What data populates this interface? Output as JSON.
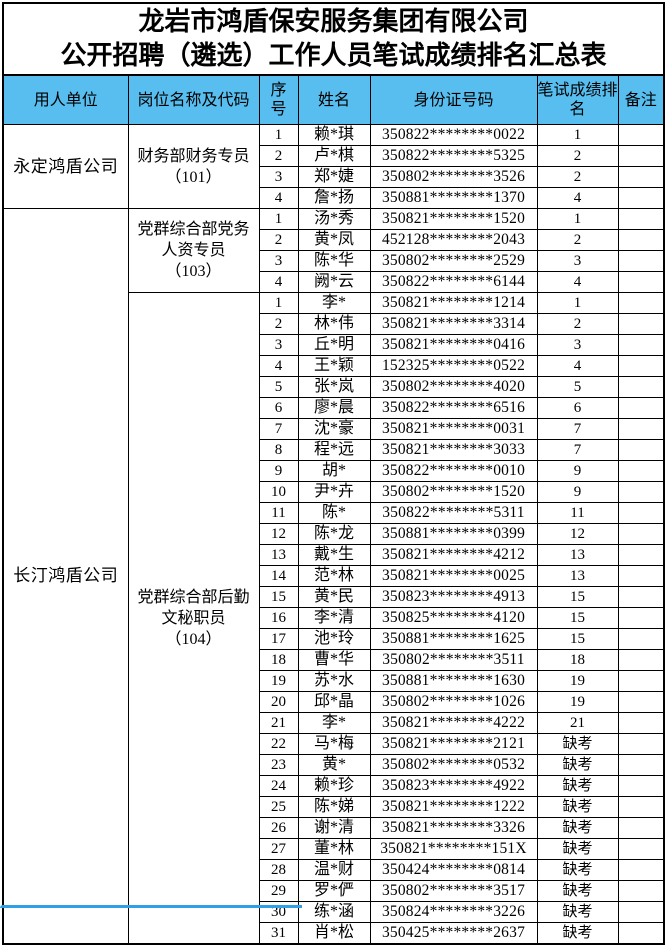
{
  "title": {
    "line1": "龙岩市鸿盾保安服务集团有限公司",
    "line2": "公开招聘（遴选）工作人员笔试成绩排名汇总表"
  },
  "header": {
    "employer": "用人单位",
    "position": "岗位名称及代码",
    "index": "序号",
    "name": "姓名",
    "id_number": "身份证号码",
    "rank": "笔试成绩排名",
    "remark": "备注"
  },
  "colors": {
    "header_bg": "#58BEEF",
    "border": "#000000",
    "bottom_strip": "#2F9FE8"
  },
  "groups": [
    {
      "employer": "永定鸿盾公司",
      "positions": [
        {
          "title_lines": [
            "财务部财务专员",
            "（101）"
          ],
          "rows": [
            {
              "no": "1",
              "name": "赖*琪",
              "id": "350822********0022",
              "rank": "1",
              "remark": ""
            },
            {
              "no": "2",
              "name": "卢*棋",
              "id": "350822********5325",
              "rank": "2",
              "remark": ""
            },
            {
              "no": "3",
              "name": "郑*婕",
              "id": "350802********3526",
              "rank": "2",
              "remark": ""
            },
            {
              "no": "4",
              "name": "詹*扬",
              "id": "350881********1370",
              "rank": "4",
              "remark": ""
            }
          ]
        }
      ]
    },
    {
      "employer": "长汀鸿盾公司",
      "positions": [
        {
          "title_lines": [
            "党群综合部党务",
            "人资专员",
            "（103）"
          ],
          "rows": [
            {
              "no": "1",
              "name": "汤*秀",
              "id": "350821********1520",
              "rank": "1",
              "remark": ""
            },
            {
              "no": "2",
              "name": "黄*凤",
              "id": "452128********2043",
              "rank": "2",
              "remark": ""
            },
            {
              "no": "3",
              "name": "陈*华",
              "id": "350802********2529",
              "rank": "3",
              "remark": ""
            },
            {
              "no": "4",
              "name": "阙*云",
              "id": "350822********6144",
              "rank": "4",
              "remark": ""
            }
          ]
        },
        {
          "title_lines": [
            "党群综合部后勤",
            "文秘职员",
            "（104）"
          ],
          "rows": [
            {
              "no": "1",
              "name": "李*",
              "id": "350821********1214",
              "rank": "1",
              "remark": ""
            },
            {
              "no": "2",
              "name": "林*伟",
              "id": "350821********3314",
              "rank": "2",
              "remark": ""
            },
            {
              "no": "3",
              "name": "丘*明",
              "id": "350821********0416",
              "rank": "3",
              "remark": ""
            },
            {
              "no": "4",
              "name": "王*颖",
              "id": "152325********0522",
              "rank": "4",
              "remark": ""
            },
            {
              "no": "5",
              "name": "张*岚",
              "id": "350802********4020",
              "rank": "5",
              "remark": ""
            },
            {
              "no": "6",
              "name": "廖*晨",
              "id": "350822********6516",
              "rank": "6",
              "remark": ""
            },
            {
              "no": "7",
              "name": "沈*豪",
              "id": "350821********0031",
              "rank": "7",
              "remark": ""
            },
            {
              "no": "8",
              "name": "程*远",
              "id": "350821********3033",
              "rank": "7",
              "remark": ""
            },
            {
              "no": "9",
              "name": "胡*",
              "id": "350822********0010",
              "rank": "9",
              "remark": ""
            },
            {
              "no": "10",
              "name": "尹*卉",
              "id": "350802********1520",
              "rank": "9",
              "remark": ""
            },
            {
              "no": "11",
              "name": "陈*",
              "id": "350822********5311",
              "rank": "11",
              "remark": ""
            },
            {
              "no": "12",
              "name": "陈*龙",
              "id": "350881********0399",
              "rank": "12",
              "remark": ""
            },
            {
              "no": "13",
              "name": "戴*生",
              "id": "350821********4212",
              "rank": "13",
              "remark": ""
            },
            {
              "no": "14",
              "name": "范*林",
              "id": "350821********0025",
              "rank": "13",
              "remark": ""
            },
            {
              "no": "15",
              "name": "黄*民",
              "id": "350823********4913",
              "rank": "15",
              "remark": ""
            },
            {
              "no": "16",
              "name": "李*清",
              "id": "350825********4120",
              "rank": "15",
              "remark": ""
            },
            {
              "no": "17",
              "name": "池*玲",
              "id": "350881********1625",
              "rank": "15",
              "remark": ""
            },
            {
              "no": "18",
              "name": "曹*华",
              "id": "350802********3511",
              "rank": "18",
              "remark": ""
            },
            {
              "no": "19",
              "name": "苏*水",
              "id": "350881********1630",
              "rank": "19",
              "remark": ""
            },
            {
              "no": "20",
              "name": "邱*晶",
              "id": "350802********1026",
              "rank": "19",
              "remark": ""
            },
            {
              "no": "21",
              "name": "李*",
              "id": "350821********4222",
              "rank": "21",
              "remark": ""
            },
            {
              "no": "22",
              "name": "马*梅",
              "id": "350821********2121",
              "rank": "缺考",
              "remark": ""
            },
            {
              "no": "23",
              "name": "黄*",
              "id": "350802********0532",
              "rank": "缺考",
              "remark": ""
            },
            {
              "no": "24",
              "name": "赖*珍",
              "id": "350823********4922",
              "rank": "缺考",
              "remark": ""
            },
            {
              "no": "25",
              "name": "陈*娣",
              "id": "350821********1222",
              "rank": "缺考",
              "remark": ""
            },
            {
              "no": "26",
              "name": "谢*清",
              "id": "350821********3326",
              "rank": "缺考",
              "remark": ""
            },
            {
              "no": "27",
              "name": "董*林",
              "id": "350821********151X",
              "rank": "缺考",
              "remark": ""
            },
            {
              "no": "28",
              "name": "温*财",
              "id": "350424********0814",
              "rank": "缺考",
              "remark": ""
            },
            {
              "no": "29",
              "name": "罗*俨",
              "id": "350802********3517",
              "rank": "缺考",
              "remark": ""
            },
            {
              "no": "30",
              "name": "练*涵",
              "id": "350824********3226",
              "rank": "缺考",
              "remark": ""
            },
            {
              "no": "31",
              "name": "肖*松",
              "id": "350425********2637",
              "rank": "缺考",
              "remark": ""
            }
          ]
        }
      ]
    }
  ]
}
